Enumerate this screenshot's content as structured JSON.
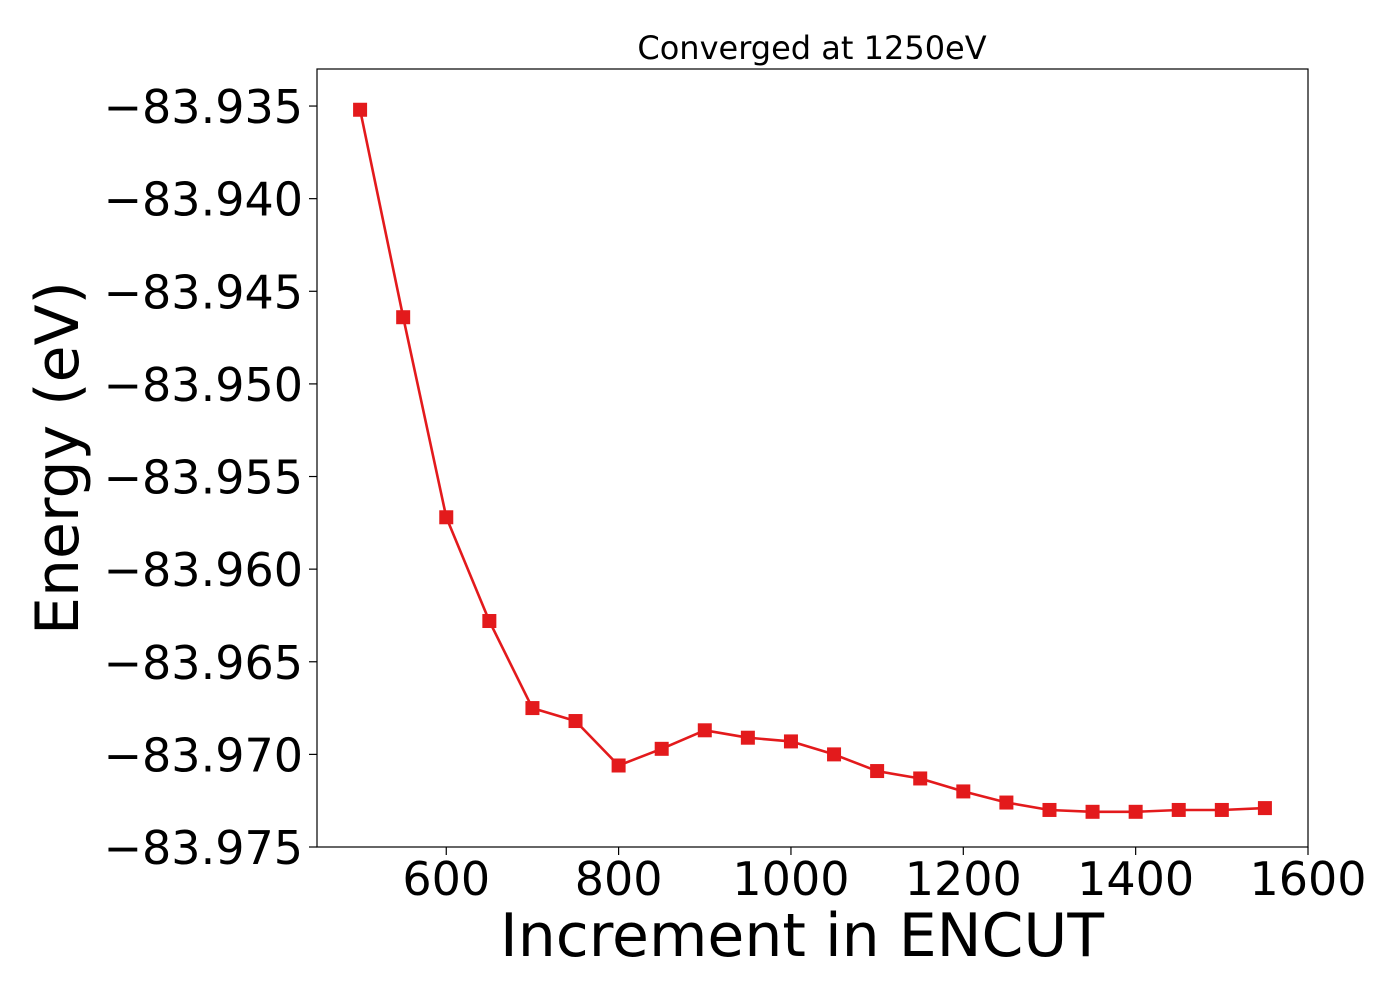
{
  "chart_data": {
    "type": "line",
    "title": "Converged at 1250eV",
    "xlabel": "Increment in ENCUT",
    "ylabel": "Energy (eV)",
    "xlim": [
      450,
      1600
    ],
    "ylim": [
      -83.975,
      -83.933
    ],
    "xticks": [
      600,
      800,
      1000,
      1200,
      1400,
      1600
    ],
    "yticks": [
      -83.935,
      -83.94,
      -83.945,
      -83.95,
      -83.955,
      -83.96,
      -83.965,
      -83.97,
      -83.975
    ],
    "ytick_labels": [
      "−83.935",
      "−83.940",
      "−83.945",
      "−83.950",
      "−83.955",
      "−83.960",
      "−83.965",
      "−83.970",
      "−83.975"
    ],
    "grid": false,
    "color": "#e31a1c",
    "marker": "square",
    "series": [
      {
        "x": [
          500,
          550,
          600,
          650,
          700,
          750,
          800,
          850,
          900,
          950,
          1000,
          1050,
          1100,
          1150,
          1200,
          1250,
          1300,
          1350,
          1400,
          1450,
          1500,
          1550
        ],
        "y": [
          -83.9352,
          -83.9464,
          -83.9572,
          -83.9628,
          -83.9675,
          -83.9682,
          -83.9706,
          -83.9697,
          -83.9687,
          -83.9691,
          -83.9693,
          -83.97,
          -83.9709,
          -83.9713,
          -83.972,
          -83.9726,
          -83.973,
          -83.9731,
          -83.9731,
          -83.973,
          -83.973,
          -83.9729
        ]
      }
    ]
  }
}
